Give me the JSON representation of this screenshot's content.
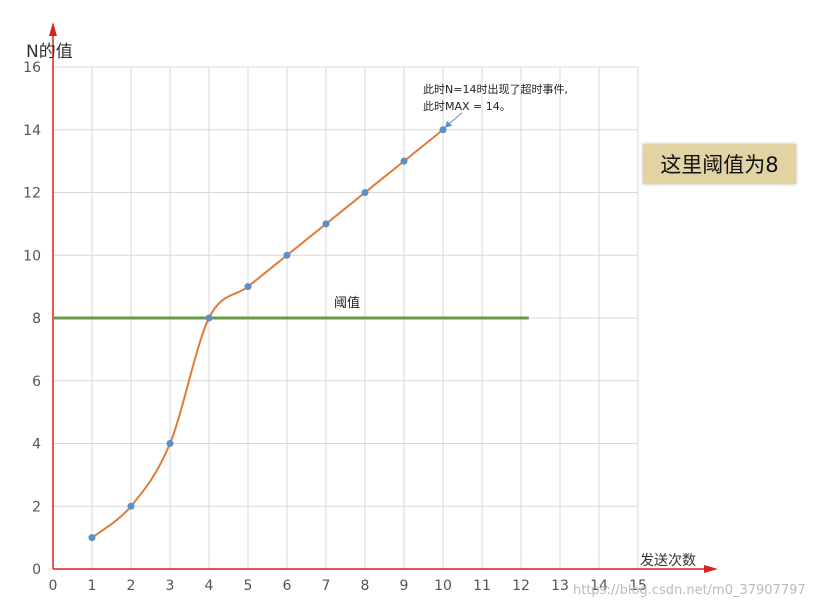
{
  "chart_data": {
    "type": "line",
    "ylabel": "N的值",
    "xlabel": "发送次数",
    "xlim": [
      0,
      15
    ],
    "ylim": [
      0,
      16
    ],
    "x_ticks": [
      0,
      1,
      2,
      3,
      4,
      5,
      6,
      7,
      8,
      9,
      10,
      11,
      12,
      13,
      14,
      15
    ],
    "y_ticks": [
      0,
      2,
      4,
      6,
      8,
      10,
      12,
      14,
      16
    ],
    "grid": true,
    "series": [
      {
        "x": [
          1,
          2,
          3,
          4,
          5,
          6,
          7,
          8,
          9,
          10
        ],
        "y": [
          1,
          2,
          4,
          8,
          9,
          10,
          11,
          12,
          13,
          14
        ]
      }
    ],
    "threshold": {
      "value": 8,
      "x_end": 12.2,
      "label": "阈值"
    },
    "annotation": {
      "lines": [
        "此时N=14时出现了超时事件,",
        "此时MAX = 14。"
      ],
      "target": [
        10,
        14
      ]
    },
    "note": "这里阈值为8",
    "watermark": "https://blog.csdn.net/m0_37907797",
    "colors": {
      "line": "#e07b39",
      "marker": "#5b8fc9",
      "threshold": "#6a9a4a",
      "axis": "#d9221c",
      "grid": "#d9d9d9"
    }
  }
}
